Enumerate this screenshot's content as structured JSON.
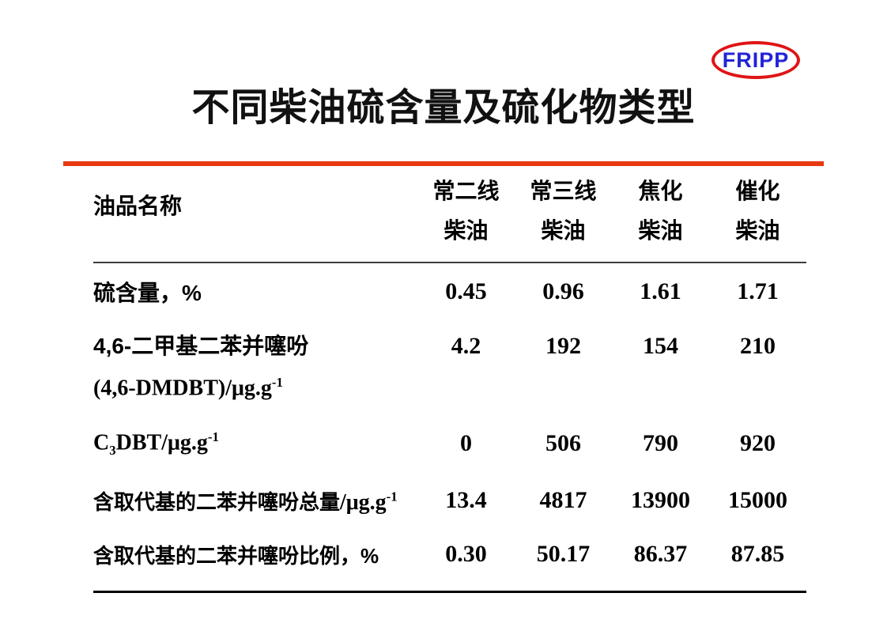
{
  "title": "不同柴油硫含量及硫化物类型",
  "colors": {
    "divider": "#e8380d",
    "logo_ring": "#e01414",
    "logo_text": "#2323d8"
  },
  "logo": {
    "text": "FRIPP"
  },
  "table": {
    "name_header": "油品名称",
    "col_headers": [
      {
        "top": "常二线",
        "bottom": "柴油"
      },
      {
        "top": "常三线",
        "bottom": "柴油"
      },
      {
        "top": "焦化",
        "bottom": "柴油"
      },
      {
        "top": "催化",
        "bottom": "柴油"
      }
    ],
    "rows": [
      {
        "label": {
          "text": "硫含量，%"
        },
        "values": [
          "0.45",
          "0.96",
          "1.61",
          "1.71"
        ]
      },
      {
        "label": {
          "line1": "4,6-二甲基二苯并噻吩",
          "line2_base": "(4,6-DMDBT)/μg.g",
          "line2_sup": "-1"
        },
        "values": [
          "4.2",
          "192",
          "154",
          "210"
        ]
      },
      {
        "label": {
          "pre": "C",
          "sub": "3",
          "mid": "DBT/μg.g",
          "sup": "-1"
        },
        "values": [
          "0",
          "506",
          "790",
          "920"
        ]
      },
      {
        "label": {
          "zh": "含取代基的二苯并噻吩总量",
          "unit": "/μg.g",
          "sup": "-1"
        },
        "values": [
          "13.4",
          "4817",
          "13900",
          "15000"
        ]
      },
      {
        "label": {
          "text": "含取代基的二苯并噻吩比例，%"
        },
        "values": [
          "0.30",
          "50.17",
          "86.37",
          "87.85"
        ]
      }
    ]
  }
}
